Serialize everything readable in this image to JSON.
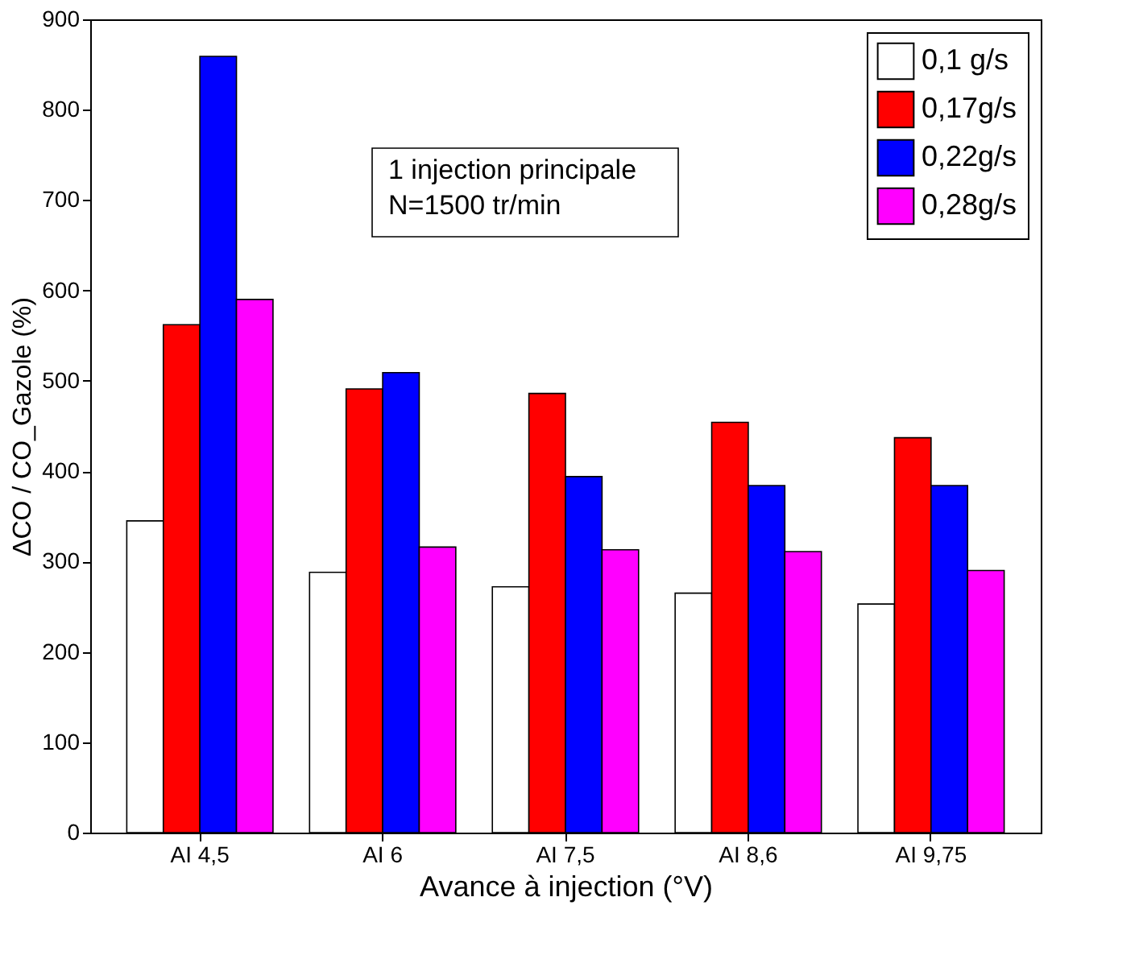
{
  "chart_data": {
    "type": "bar",
    "xlabel": "Avance à injection  (°V)",
    "ylabel": "ΔCO / CO_Gazole (%)",
    "categories": [
      "AI 4,5",
      "AI 6",
      "AI 7,5",
      "AI 8,6",
      "AI 9,75"
    ],
    "series": [
      {
        "name": "0,1 g/s",
        "color": "#ffffff",
        "values": [
          345,
          288,
          272,
          265,
          253
        ]
      },
      {
        "name": "0,17g/s",
        "color": "#ff0000",
        "values": [
          562,
          491,
          486,
          454,
          437
        ]
      },
      {
        "name": "0,22g/s",
        "color": "#0000ff",
        "values": [
          859,
          509,
          394,
          384,
          384
        ]
      },
      {
        "name": "0,28g/s",
        "color": "#ff00ff",
        "values": [
          590,
          316,
          313,
          311,
          290
        ]
      }
    ],
    "ylim": [
      0,
      900
    ],
    "yticks": [
      0,
      100,
      200,
      300,
      400,
      500,
      600,
      700,
      800,
      900
    ],
    "annotations": [
      "1 injection principale\n N=1500 tr/min"
    ],
    "legend": "top right",
    "grid": false
  }
}
